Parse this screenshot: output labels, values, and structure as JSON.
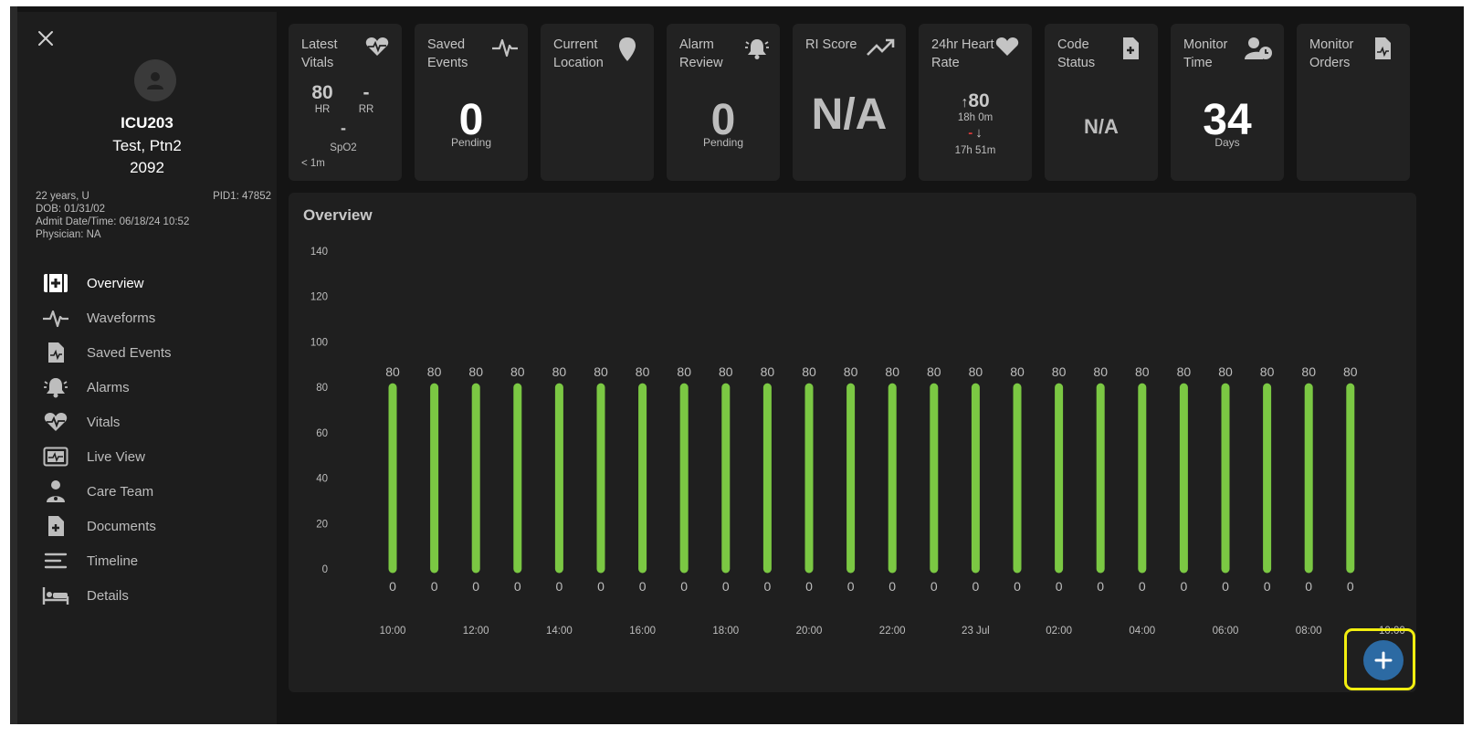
{
  "patient": {
    "unit": "ICU203",
    "name": "Test, Ptn2",
    "number": "2092",
    "age_sex": "22 years, U",
    "pid": "PID1: 47852",
    "dob": "DOB: 01/31/02",
    "admit": "Admit Date/Time: 06/18/24 10:52",
    "physician": "Physician: NA"
  },
  "nav": {
    "items": [
      {
        "label": "Overview",
        "icon": "overview-icon",
        "active": true
      },
      {
        "label": "Waveforms",
        "icon": "waveform-icon"
      },
      {
        "label": "Saved Events",
        "icon": "saved-events-icon"
      },
      {
        "label": "Alarms",
        "icon": "alarm-bell-icon"
      },
      {
        "label": "Vitals",
        "icon": "heart-pulse-icon"
      },
      {
        "label": "Live View",
        "icon": "live-view-icon"
      },
      {
        "label": "Care Team",
        "icon": "care-team-icon"
      },
      {
        "label": "Documents",
        "icon": "document-icon"
      },
      {
        "label": "Timeline",
        "icon": "timeline-icon"
      },
      {
        "label": "Details",
        "icon": "bed-icon"
      }
    ]
  },
  "cards": {
    "latest_vitals": {
      "title": "Latest Vitals",
      "hr_value": "80",
      "hr_label": "HR",
      "rr_value": "-",
      "rr_label": "RR",
      "spo2_value": "-",
      "spo2_label": "SpO2",
      "age": "< 1m"
    },
    "saved_events": {
      "title": "Saved Events",
      "value": "0",
      "label": "Pending"
    },
    "current_location": {
      "title": "Current Location"
    },
    "alarm_review": {
      "title": "Alarm Review",
      "value": "0",
      "label": "Pending"
    },
    "ri_score": {
      "title": "RI Score",
      "value": "N/A"
    },
    "heart_rate_24hr": {
      "title": "24hr Heart Rate",
      "high_value": "80",
      "high_time": "18h 0m",
      "low_value": "-",
      "low_time": "17h 51m"
    },
    "code_status": {
      "title": "Code Status",
      "value": "N/A"
    },
    "monitor_time": {
      "title": "Monitor Time",
      "value": "34",
      "label": "Days"
    },
    "monitor_orders": {
      "title": "Monitor Orders"
    }
  },
  "overview": {
    "title": "Overview"
  },
  "chart_data": {
    "type": "bar",
    "title": "Overview",
    "ylim": [
      0,
      140
    ],
    "yticks": [
      0,
      20,
      40,
      60,
      80,
      100,
      120,
      140
    ],
    "x_tick_labels": [
      "10:00",
      "12:00",
      "14:00",
      "16:00",
      "18:00",
      "20:00",
      "22:00",
      "23 Jul",
      "02:00",
      "04:00",
      "06:00",
      "08:00",
      "10:00"
    ],
    "series": [
      {
        "values_high": [
          80,
          80,
          80,
          80,
          80,
          80,
          80,
          80,
          80,
          80,
          80,
          80,
          80,
          80,
          80,
          80,
          80,
          80,
          80,
          80,
          80,
          80,
          80,
          80
        ],
        "values_low": [
          0,
          0,
          0,
          0,
          0,
          0,
          0,
          0,
          0,
          0,
          0,
          0,
          0,
          0,
          0,
          0,
          0,
          0,
          0,
          0,
          0,
          0,
          0,
          0
        ]
      }
    ],
    "bar_color": "#7bc843",
    "grid": false
  },
  "colors": {
    "accent": "#2c6aa3",
    "bar": "#7bc843",
    "highlight": "#f2ee10",
    "low_marker": "#d83a3a"
  }
}
